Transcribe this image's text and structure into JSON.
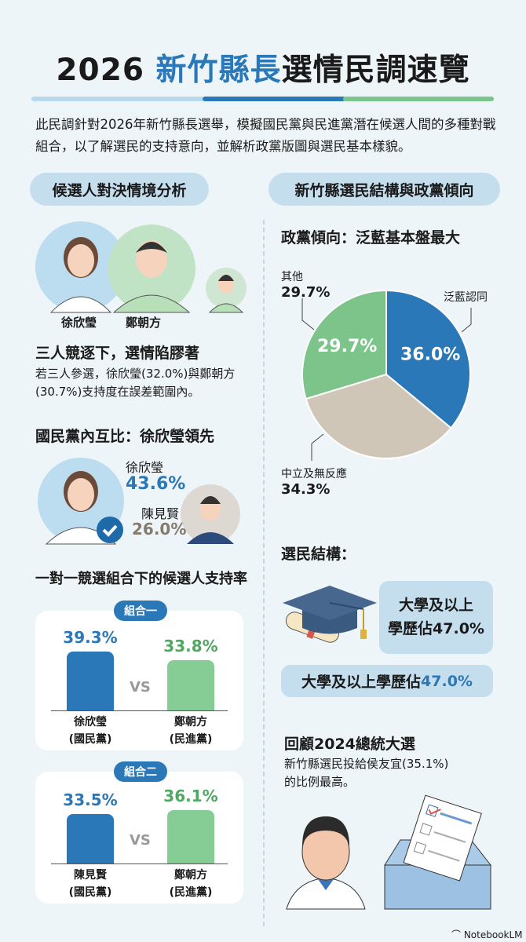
{
  "title": {
    "year": "2026",
    "highlight": "新竹縣長",
    "rest": "選情民調速覽"
  },
  "intro": "此民調針對2026年新竹縣長選舉，模擬國民黨與民進黨潛在候選人間的多種對戰組合，以了解選民的支持意向，並解析政黨版圖與選民基本樣貌。",
  "colors": {
    "blue": "#2a78b8",
    "green": "#7cc48a",
    "tan": "#cfc6b8",
    "light_blue": "#c5deee",
    "gray": "#857a6e"
  },
  "left": {
    "pill": "候選人對決情境分析",
    "names": [
      "徐欣瑩",
      "鄭朝方"
    ],
    "three_way": {
      "heading": "三人競逐下，選情陷膠著",
      "text": "若三人參選，徐欣瑩(32.0%)與鄭朝方(30.7%)支持度在誤差範圍內。"
    },
    "kmt": {
      "heading": "國民黨內互比：徐欣瑩領先",
      "a_name": "徐欣瑩",
      "a_value": "43.6%",
      "b_name": "陳見賢",
      "b_value": "26.0%"
    },
    "matchups_heading": "一對一競選組合下的候選人支持率",
    "vs": "VS",
    "matchups": [
      {
        "tag": "組合一",
        "a": {
          "name": "徐欣瑩",
          "party": "(國民黨)",
          "label": "39.3%",
          "value": 39.3
        },
        "b": {
          "name": "鄭朝方",
          "party": "(民進黨)",
          "label": "33.8%",
          "value": 33.8
        }
      },
      {
        "tag": "組合二",
        "a": {
          "name": "陳見賢",
          "party": "(國民黨)",
          "label": "33.5%",
          "value": 33.5
        },
        "b": {
          "name": "鄭朝方",
          "party": "(民進黨)",
          "label": "36.1%",
          "value": 36.1
        }
      }
    ]
  },
  "right": {
    "pill": "新竹縣選民結構與政黨傾向",
    "party_heading": "政黨傾向：泛藍基本盤最大",
    "structure_heading": "選民結構：",
    "edu_bubble_1": "大學及以上",
    "edu_bubble_2": "學歷佔47.0%",
    "edu_band_text": "大學及以上學歷佔",
    "edu_band_value": "47.0%",
    "review_heading": "回顧2024總統大選",
    "review_text_1": "新竹縣選民投給侯友宜(35.1%)",
    "review_text_2": "的比例最高。"
  },
  "chart_data": {
    "type": "pie",
    "title": "政黨傾向：泛藍基本盤最大",
    "slices": [
      {
        "name": "泛藍認同",
        "value": 36.0,
        "label": "36.0%",
        "color": "#2a78b8"
      },
      {
        "name": "中立及無反應",
        "value": 34.3,
        "label": "34.3%",
        "color": "#cfc6b8"
      },
      {
        "name": "其他",
        "value": 29.7,
        "label": "29.7%",
        "color": "#7cc48a"
      }
    ]
  },
  "footer": {
    "brand": "NotebookLM"
  }
}
